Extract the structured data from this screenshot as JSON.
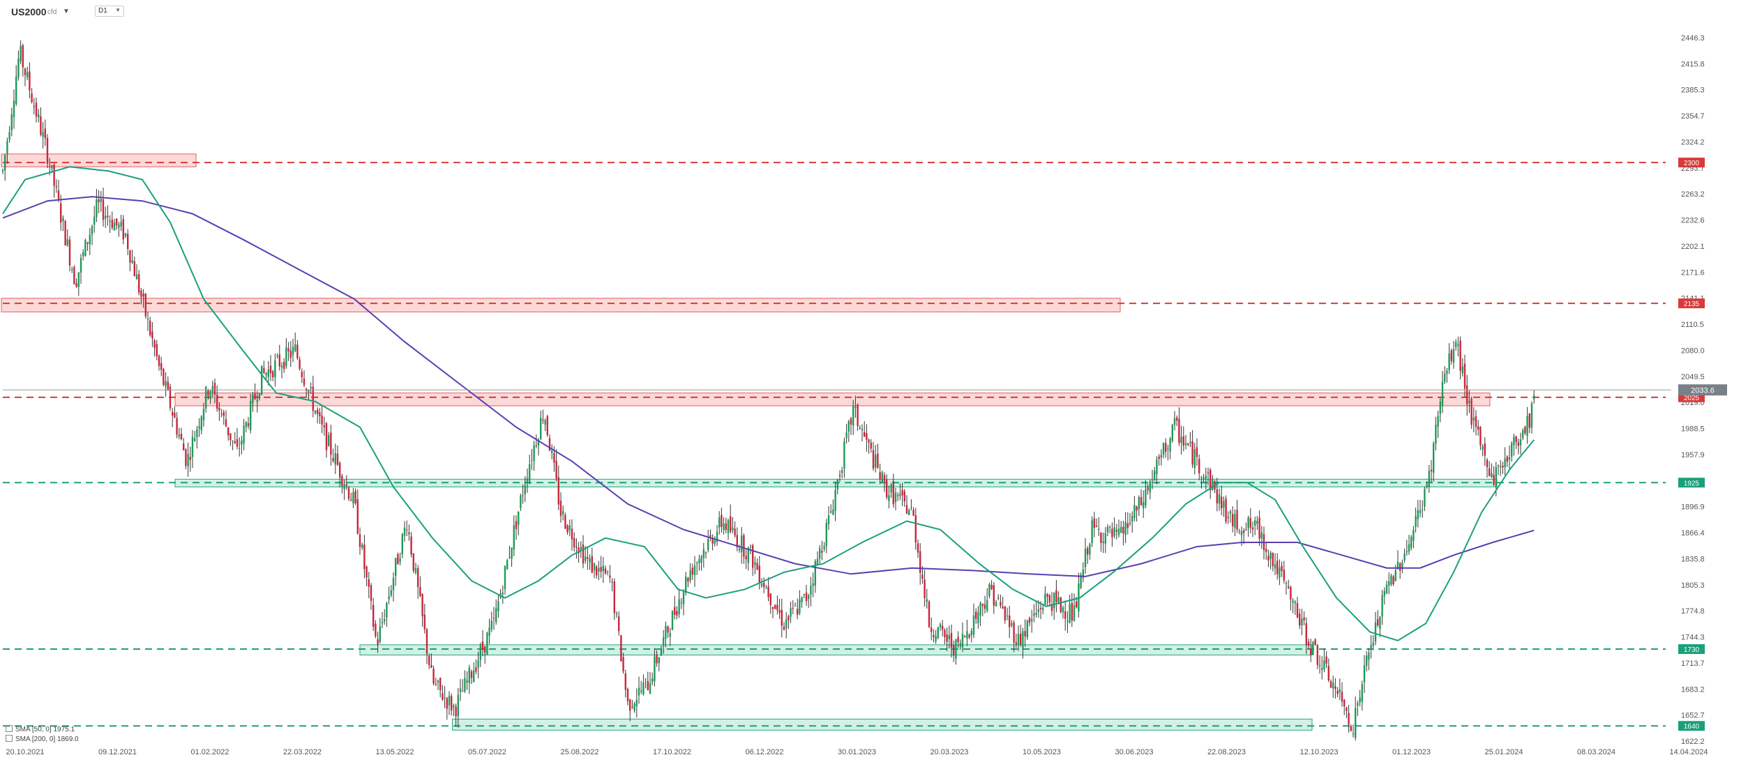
{
  "toolbar": {
    "symbol": "US2000",
    "symbol_suffix": "cfd",
    "timeframe": "D1"
  },
  "legend": [
    {
      "text": "SMA [50, 0] 1975.1",
      "color": "#1aa07a"
    },
    {
      "text": "SMA [200, 0] 1869.0",
      "color": "#5a3db0"
    }
  ],
  "chart_data": {
    "type": "candlestick",
    "y_ticks": [
      2446.3,
      2415.8,
      2385.3,
      2354.7,
      2324.2,
      2293.7,
      2263.2,
      2232.6,
      2202.1,
      2171.6,
      2141.1,
      2110.5,
      2080.0,
      2049.5,
      2019.0,
      1988.5,
      1957.9,
      1927.4,
      1896.9,
      1866.4,
      1835.8,
      1805.3,
      1774.8,
      1744.3,
      1713.7,
      1683.2,
      1652.7,
      1622.2
    ],
    "x_ticks": [
      "20.10.2021",
      "09.12.2021",
      "01.02.2022",
      "22.03.2022",
      "13.05.2022",
      "05.07.2022",
      "25.08.2022",
      "17.10.2022",
      "06.12.2022",
      "30.01.2023",
      "20.03.2023",
      "10.05.2023",
      "30.06.2023",
      "22.08.2023",
      "12.10.2023",
      "01.12.2023",
      "25.01.2024",
      "08.03.2024",
      "14.04.2024"
    ],
    "ylim": [
      1622.2,
      2446.3
    ],
    "last_price": "2033.6",
    "levels": [
      {
        "value": 2300,
        "label": "2300",
        "color": "#d93a3a"
      },
      {
        "value": 2135,
        "label": "2135",
        "color": "#d93a3a"
      },
      {
        "value": 2025,
        "label": "2025",
        "color": "#d93a3a"
      },
      {
        "value": 1925,
        "label": "1925",
        "color": "#1aa07a"
      },
      {
        "value": 1730,
        "label": "1730",
        "color": "#1aa07a"
      },
      {
        "value": 1640,
        "label": "1640",
        "color": "#1aa07a"
      }
    ],
    "zones": [
      {
        "from": "20.10.2021",
        "to": "01.02.2022",
        "low": 2295,
        "high": 2310,
        "color": "red"
      },
      {
        "from": "20.10.2021",
        "to": "30.06.2023",
        "low": 2125,
        "high": 2141,
        "color": "red"
      },
      {
        "from": "01.02.2022",
        "to": "25.01.2024",
        "low": 2015,
        "high": 2030,
        "color": "red"
      },
      {
        "from": "01.02.2022",
        "to": "25.01.2024",
        "low": 1920,
        "high": 1929,
        "color": "green"
      },
      {
        "from": "13.05.2022",
        "to": "12.10.2023",
        "low": 1723,
        "high": 1735,
        "color": "green"
      },
      {
        "from": "05.07.2022",
        "to": "12.10.2023",
        "low": 1635,
        "high": 1648,
        "color": "green"
      }
    ],
    "price_path": [
      [
        0,
        2290
      ],
      [
        15,
        2430
      ],
      [
        40,
        2310
      ],
      [
        65,
        2160
      ],
      [
        85,
        2250
      ],
      [
        110,
        2215
      ],
      [
        140,
        2060
      ],
      [
        165,
        1950
      ],
      [
        185,
        2040
      ],
      [
        210,
        1960
      ],
      [
        232,
        2050
      ],
      [
        262,
        2080
      ],
      [
        285,
        1990
      ],
      [
        315,
        1900
      ],
      [
        335,
        1735
      ],
      [
        362,
        1880
      ],
      [
        385,
        1690
      ],
      [
        405,
        1660
      ],
      [
        440,
        1760
      ],
      [
        470,
        1940
      ],
      [
        485,
        2010
      ],
      [
        500,
        1890
      ],
      [
        525,
        1830
      ],
      [
        545,
        1810
      ],
      [
        560,
        1665
      ],
      [
        578,
        1690
      ],
      [
        598,
        1760
      ],
      [
        615,
        1820
      ],
      [
        645,
        1880
      ],
      [
        670,
        1840
      ],
      [
        700,
        1760
      ],
      [
        720,
        1790
      ],
      [
        740,
        1880
      ],
      [
        762,
        2010
      ],
      [
        790,
        1920
      ],
      [
        815,
        1890
      ],
      [
        830,
        1760
      ],
      [
        855,
        1730
      ],
      [
        885,
        1800
      ],
      [
        910,
        1740
      ],
      [
        935,
        1790
      ],
      [
        960,
        1770
      ],
      [
        975,
        1870
      ],
      [
        1000,
        1860
      ],
      [
        1020,
        1900
      ],
      [
        1050,
        1990
      ],
      [
        1080,
        1930
      ],
      [
        1100,
        1880
      ],
      [
        1125,
        1870
      ],
      [
        1150,
        1800
      ],
      [
        1170,
        1740
      ],
      [
        1195,
        1680
      ],
      [
        1210,
        1640
      ],
      [
        1222,
        1715
      ],
      [
        1240,
        1800
      ],
      [
        1262,
        1860
      ],
      [
        1278,
        1930
      ],
      [
        1290,
        2040
      ],
      [
        1302,
        2090
      ],
      [
        1318,
        1990
      ],
      [
        1335,
        1930
      ],
      [
        1350,
        1960
      ],
      [
        1368,
        2000
      ],
      [
        1372,
        2030
      ]
    ],
    "sma50_path": [
      [
        0,
        2240
      ],
      [
        20,
        2280
      ],
      [
        60,
        2295
      ],
      [
        95,
        2290
      ],
      [
        125,
        2280
      ],
      [
        150,
        2230
      ],
      [
        180,
        2140
      ],
      [
        215,
        2080
      ],
      [
        245,
        2030
      ],
      [
        280,
        2020
      ],
      [
        320,
        1990
      ],
      [
        350,
        1920
      ],
      [
        385,
        1860
      ],
      [
        420,
        1810
      ],
      [
        450,
        1790
      ],
      [
        480,
        1810
      ],
      [
        510,
        1840
      ],
      [
        540,
        1860
      ],
      [
        575,
        1850
      ],
      [
        605,
        1800
      ],
      [
        630,
        1790
      ],
      [
        665,
        1800
      ],
      [
        700,
        1820
      ],
      [
        735,
        1830
      ],
      [
        770,
        1855
      ],
      [
        810,
        1880
      ],
      [
        840,
        1870
      ],
      [
        875,
        1830
      ],
      [
        905,
        1800
      ],
      [
        935,
        1780
      ],
      [
        965,
        1790
      ],
      [
        995,
        1820
      ],
      [
        1030,
        1860
      ],
      [
        1060,
        1900
      ],
      [
        1090,
        1925
      ],
      [
        1115,
        1925
      ],
      [
        1140,
        1905
      ],
      [
        1165,
        1850
      ],
      [
        1195,
        1790
      ],
      [
        1225,
        1750
      ],
      [
        1250,
        1740
      ],
      [
        1275,
        1760
      ],
      [
        1300,
        1820
      ],
      [
        1325,
        1890
      ],
      [
        1350,
        1940
      ],
      [
        1372,
        1975
      ]
    ],
    "sma200_path": [
      [
        0,
        2235
      ],
      [
        40,
        2255
      ],
      [
        80,
        2260
      ],
      [
        125,
        2255
      ],
      [
        170,
        2240
      ],
      [
        215,
        2210
      ],
      [
        265,
        2175
      ],
      [
        315,
        2140
      ],
      [
        360,
        2090
      ],
      [
        410,
        2040
      ],
      [
        460,
        1990
      ],
      [
        510,
        1950
      ],
      [
        560,
        1900
      ],
      [
        610,
        1870
      ],
      [
        660,
        1850
      ],
      [
        710,
        1830
      ],
      [
        760,
        1818
      ],
      [
        815,
        1825
      ],
      [
        870,
        1822
      ],
      [
        920,
        1818
      ],
      [
        970,
        1815
      ],
      [
        1020,
        1830
      ],
      [
        1070,
        1850
      ],
      [
        1110,
        1855
      ],
      [
        1160,
        1855
      ],
      [
        1200,
        1840
      ],
      [
        1240,
        1825
      ],
      [
        1270,
        1825
      ],
      [
        1300,
        1840
      ],
      [
        1335,
        1855
      ],
      [
        1372,
        1869
      ]
    ]
  }
}
